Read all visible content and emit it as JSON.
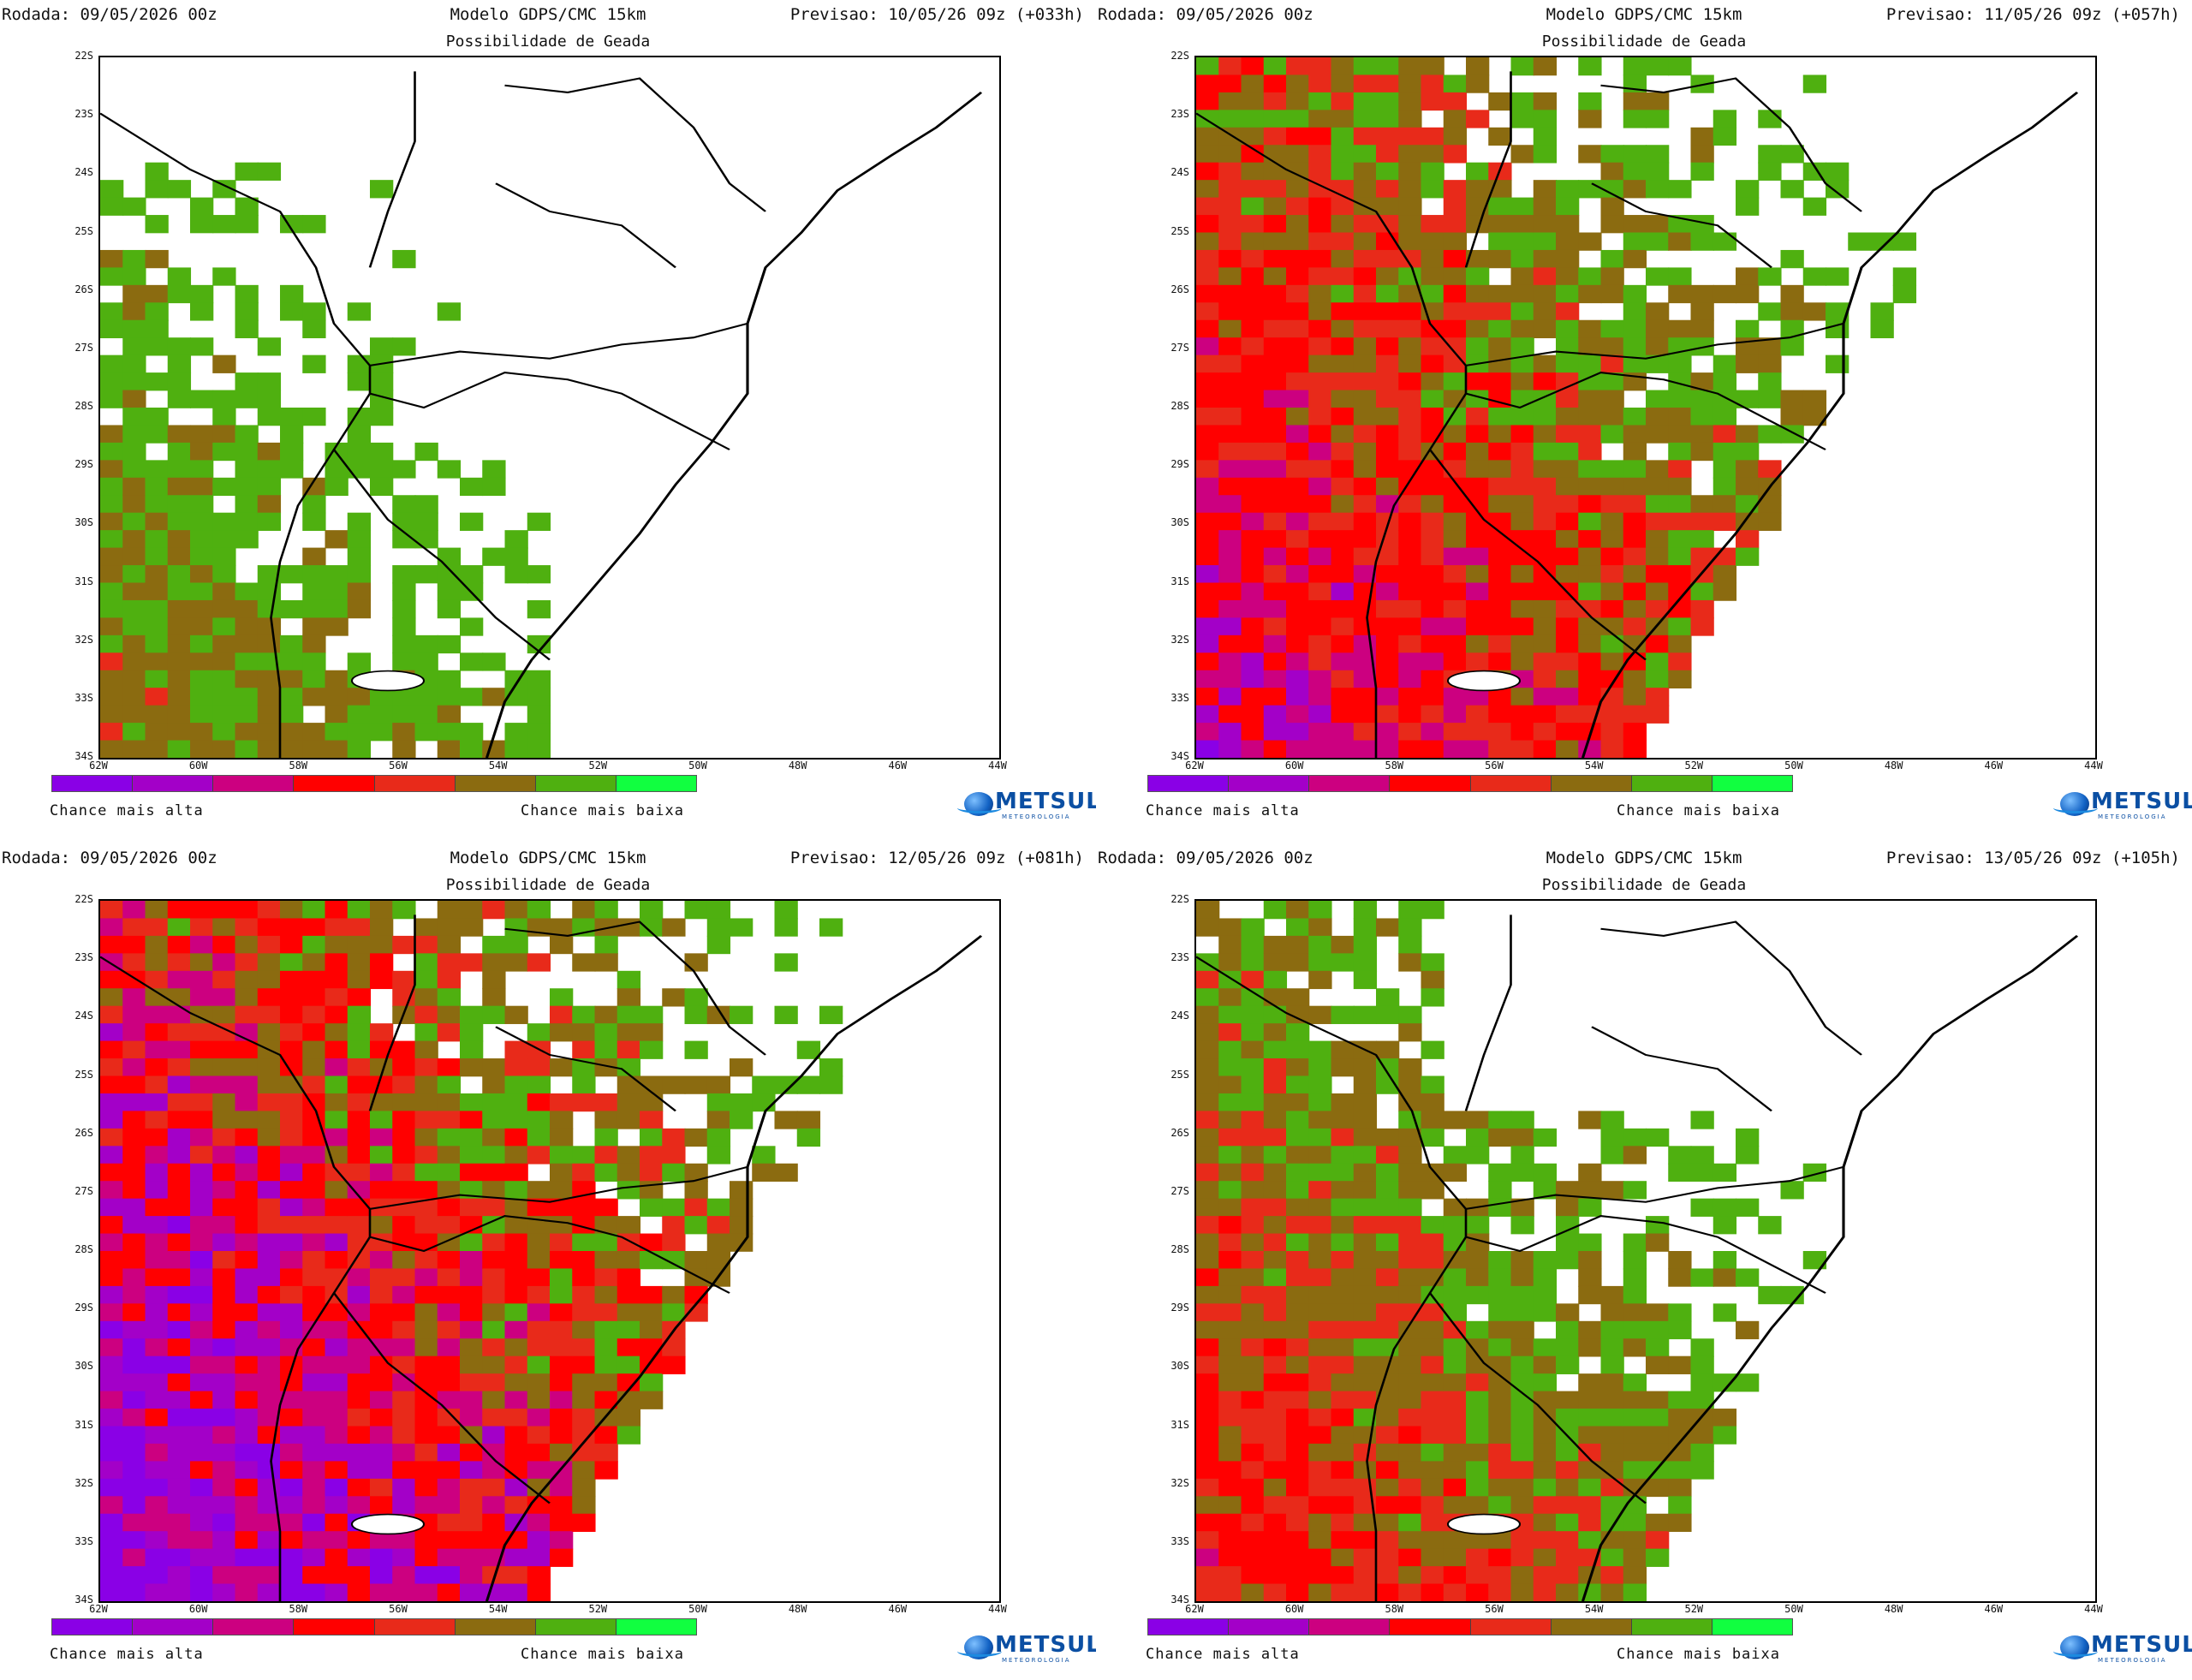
{
  "common": {
    "run": "Rodada: 09/05/2026 00z",
    "model": "Modelo GDPS/CMC 15km",
    "subtitle": "Possibilidade de Geada",
    "legend_high": "Chance mais alta",
    "legend_low": "Chance mais baixa",
    "logo_word": "METSUL",
    "logo_tag": "METEOROLOGIA"
  },
  "panels": [
    {
      "valid": "Previsao: 10/05/26 09z (+033h)",
      "level": 1
    },
    {
      "valid": "Previsao: 11/05/26 09z (+057h)",
      "level": 3
    },
    {
      "valid": "Previsao: 12/05/26 09z (+081h)",
      "level": 4
    },
    {
      "valid": "Previsao: 13/05/26 09z (+105h)",
      "level": 2
    }
  ],
  "lat_labels": [
    "22S",
    "23S",
    "24S",
    "25S",
    "26S",
    "27S",
    "28S",
    "29S",
    "30S",
    "31S",
    "32S",
    "33S",
    "34S"
  ],
  "lon_labels": [
    "62W",
    "60W",
    "58W",
    "56W",
    "54W",
    "52W",
    "50W",
    "48W",
    "46W",
    "44W"
  ],
  "legend_colors": [
    "#8a00e6",
    "#a300c8",
    "#cc0080",
    "#ff0000",
    "#e82a1a",
    "#8b6b10",
    "#4fb010",
    "#11ff40"
  ]
}
